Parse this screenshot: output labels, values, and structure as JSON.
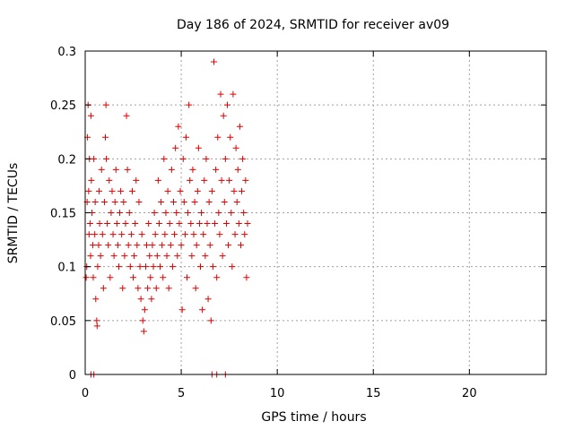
{
  "chart_data": {
    "type": "scatter",
    "title": "Day 186 of 2024, SRMTID for receiver av09",
    "xlabel": "GPS time / hours",
    "ylabel": "SRMTID / TECUs",
    "xlim": [
      0,
      24
    ],
    "ylim": [
      0,
      0.3
    ],
    "xticks": [
      0,
      5,
      10,
      15,
      20
    ],
    "xtick_labels": [
      "0",
      "5",
      "10",
      "15",
      "20"
    ],
    "yticks": [
      0,
      0.05,
      0.1,
      0.15,
      0.2,
      0.25,
      0.3
    ],
    "ytick_labels": [
      "0",
      "0.05",
      "0.1",
      "0.15",
      "0.2",
      "0.25",
      "0.3"
    ],
    "grid": true,
    "marker": "+",
    "color": "#e00000",
    "series": [
      {
        "name": "SRMTID",
        "points": [
          [
            0.05,
            0.09
          ],
          [
            0.08,
            0.1
          ],
          [
            0.1,
            0.16
          ],
          [
            0.12,
            0.22
          ],
          [
            0.15,
            0.25
          ],
          [
            0.18,
            0.17
          ],
          [
            0.2,
            0.13
          ],
          [
            0.22,
            0.2
          ],
          [
            0.25,
            0.14
          ],
          [
            0.28,
            0.11
          ],
          [
            0.3,
            0.24
          ],
          [
            0.32,
            0.18
          ],
          [
            0.35,
            0.15
          ],
          [
            0.4,
            0.12
          ],
          [
            0.42,
            0.09
          ],
          [
            0.45,
            0.2
          ],
          [
            0.5,
            0.13
          ],
          [
            0.52,
            0.16
          ],
          [
            0.55,
            0.07
          ],
          [
            0.6,
            0.05
          ],
          [
            0.62,
            0.045
          ],
          [
            0.65,
            0.1
          ],
          [
            0.7,
            0.12
          ],
          [
            0.72,
            0.17
          ],
          [
            0.75,
            0.14
          ],
          [
            0.8,
            0.11
          ],
          [
            0.85,
            0.19
          ],
          [
            0.9,
            0.13
          ],
          [
            0.95,
            0.08
          ],
          [
            1.0,
            0.16
          ],
          [
            1.05,
            0.22
          ],
          [
            1.08,
            0.25
          ],
          [
            1.1,
            0.2
          ],
          [
            1.15,
            0.14
          ],
          [
            1.2,
            0.12
          ],
          [
            1.25,
            0.18
          ],
          [
            1.3,
            0.09
          ],
          [
            1.35,
            0.15
          ],
          [
            1.4,
            0.17
          ],
          [
            1.45,
            0.13
          ],
          [
            1.5,
            0.11
          ],
          [
            1.55,
            0.16
          ],
          [
            1.6,
            0.19
          ],
          [
            1.65,
            0.14
          ],
          [
            1.7,
            0.12
          ],
          [
            1.75,
            0.1
          ],
          [
            1.8,
            0.15
          ],
          [
            1.85,
            0.17
          ],
          [
            1.9,
            0.13
          ],
          [
            1.95,
            0.08
          ],
          [
            2.0,
            0.16
          ],
          [
            2.05,
            0.11
          ],
          [
            2.1,
            0.14
          ],
          [
            2.15,
            0.24
          ],
          [
            2.2,
            0.19
          ],
          [
            2.25,
            0.12
          ],
          [
            2.3,
            0.15
          ],
          [
            2.35,
            0.1
          ],
          [
            2.4,
            0.13
          ],
          [
            2.45,
            0.17
          ],
          [
            2.5,
            0.09
          ],
          [
            2.55,
            0.11
          ],
          [
            2.6,
            0.14
          ],
          [
            2.65,
            0.18
          ],
          [
            2.7,
            0.12
          ],
          [
            2.75,
            0.08
          ],
          [
            2.8,
            0.16
          ],
          [
            2.85,
            0.1
          ],
          [
            2.9,
            0.07
          ],
          [
            2.95,
            0.13
          ],
          [
            3.0,
            0.05
          ],
          [
            3.05,
            0.04
          ],
          [
            3.1,
            0.06
          ],
          [
            3.15,
            0.1
          ],
          [
            3.2,
            0.12
          ],
          [
            3.25,
            0.08
          ],
          [
            3.3,
            0.14
          ],
          [
            3.35,
            0.11
          ],
          [
            3.4,
            0.09
          ],
          [
            3.45,
            0.07
          ],
          [
            3.5,
            0.12
          ],
          [
            3.55,
            0.1
          ],
          [
            3.6,
            0.15
          ],
          [
            3.65,
            0.13
          ],
          [
            3.7,
            0.08
          ],
          [
            3.75,
            0.11
          ],
          [
            3.8,
            0.18
          ],
          [
            3.85,
            0.14
          ],
          [
            3.9,
            0.1
          ],
          [
            3.95,
            0.16
          ],
          [
            4.0,
            0.12
          ],
          [
            4.05,
            0.09
          ],
          [
            4.1,
            0.2
          ],
          [
            4.15,
            0.13
          ],
          [
            4.2,
            0.15
          ],
          [
            4.25,
            0.11
          ],
          [
            4.3,
            0.17
          ],
          [
            4.35,
            0.08
          ],
          [
            4.4,
            0.14
          ],
          [
            4.45,
            0.12
          ],
          [
            4.5,
            0.19
          ],
          [
            4.55,
            0.1
          ],
          [
            4.6,
            0.16
          ],
          [
            4.65,
            0.13
          ],
          [
            4.7,
            0.21
          ],
          [
            4.75,
            0.15
          ],
          [
            4.8,
            0.11
          ],
          [
            4.85,
            0.23
          ],
          [
            4.9,
            0.14
          ],
          [
            4.95,
            0.17
          ],
          [
            5.0,
            0.12
          ],
          [
            5.05,
            0.06
          ],
          [
            5.1,
            0.2
          ],
          [
            5.15,
            0.16
          ],
          [
            5.2,
            0.13
          ],
          [
            5.25,
            0.22
          ],
          [
            5.3,
            0.09
          ],
          [
            5.35,
            0.15
          ],
          [
            5.4,
            0.25
          ],
          [
            5.45,
            0.18
          ],
          [
            5.5,
            0.14
          ],
          [
            5.55,
            0.11
          ],
          [
            5.6,
            0.19
          ],
          [
            5.65,
            0.13
          ],
          [
            5.7,
            0.16
          ],
          [
            5.75,
            0.08
          ],
          [
            5.8,
            0.12
          ],
          [
            5.85,
            0.17
          ],
          [
            5.9,
            0.21
          ],
          [
            5.95,
            0.14
          ],
          [
            6.0,
            0.1
          ],
          [
            6.05,
            0.15
          ],
          [
            6.1,
            0.06
          ],
          [
            6.15,
            0.13
          ],
          [
            6.2,
            0.18
          ],
          [
            6.25,
            0.11
          ],
          [
            6.3,
            0.2
          ],
          [
            6.35,
            0.14
          ],
          [
            6.4,
            0.07
          ],
          [
            6.45,
            0.16
          ],
          [
            6.5,
            0.12
          ],
          [
            6.55,
            0.05
          ],
          [
            6.6,
            0.17
          ],
          [
            6.65,
            0.1
          ],
          [
            6.7,
            0.29
          ],
          [
            6.75,
            0.14
          ],
          [
            6.8,
            0.19
          ],
          [
            6.85,
            0.09
          ],
          [
            6.9,
            0.22
          ],
          [
            6.95,
            0.15
          ],
          [
            7.0,
            0.13
          ],
          [
            7.05,
            0.26
          ],
          [
            7.1,
            0.18
          ],
          [
            7.15,
            0.11
          ],
          [
            7.2,
            0.24
          ],
          [
            7.25,
            0.16
          ],
          [
            7.3,
            0.2
          ],
          [
            7.35,
            0.14
          ],
          [
            7.4,
            0.25
          ],
          [
            7.45,
            0.12
          ],
          [
            7.5,
            0.18
          ],
          [
            7.55,
            0.22
          ],
          [
            7.6,
            0.15
          ],
          [
            7.65,
            0.1
          ],
          [
            7.7,
            0.26
          ],
          [
            7.75,
            0.17
          ],
          [
            7.8,
            0.13
          ],
          [
            7.85,
            0.21
          ],
          [
            7.9,
            0.16
          ],
          [
            7.95,
            0.19
          ],
          [
            8.0,
            0.14
          ],
          [
            8.05,
            0.23
          ],
          [
            8.1,
            0.12
          ],
          [
            8.15,
            0.17
          ],
          [
            8.2,
            0.2
          ],
          [
            8.25,
            0.15
          ],
          [
            8.3,
            0.13
          ],
          [
            8.35,
            0.18
          ],
          [
            8.4,
            0.09
          ],
          [
            8.45,
            0.14
          ],
          [
            0.3,
            0.0
          ],
          [
            0.45,
            0.0
          ],
          [
            6.6,
            0.0
          ],
          [
            6.85,
            0.0
          ],
          [
            7.3,
            0.0
          ]
        ]
      }
    ]
  }
}
